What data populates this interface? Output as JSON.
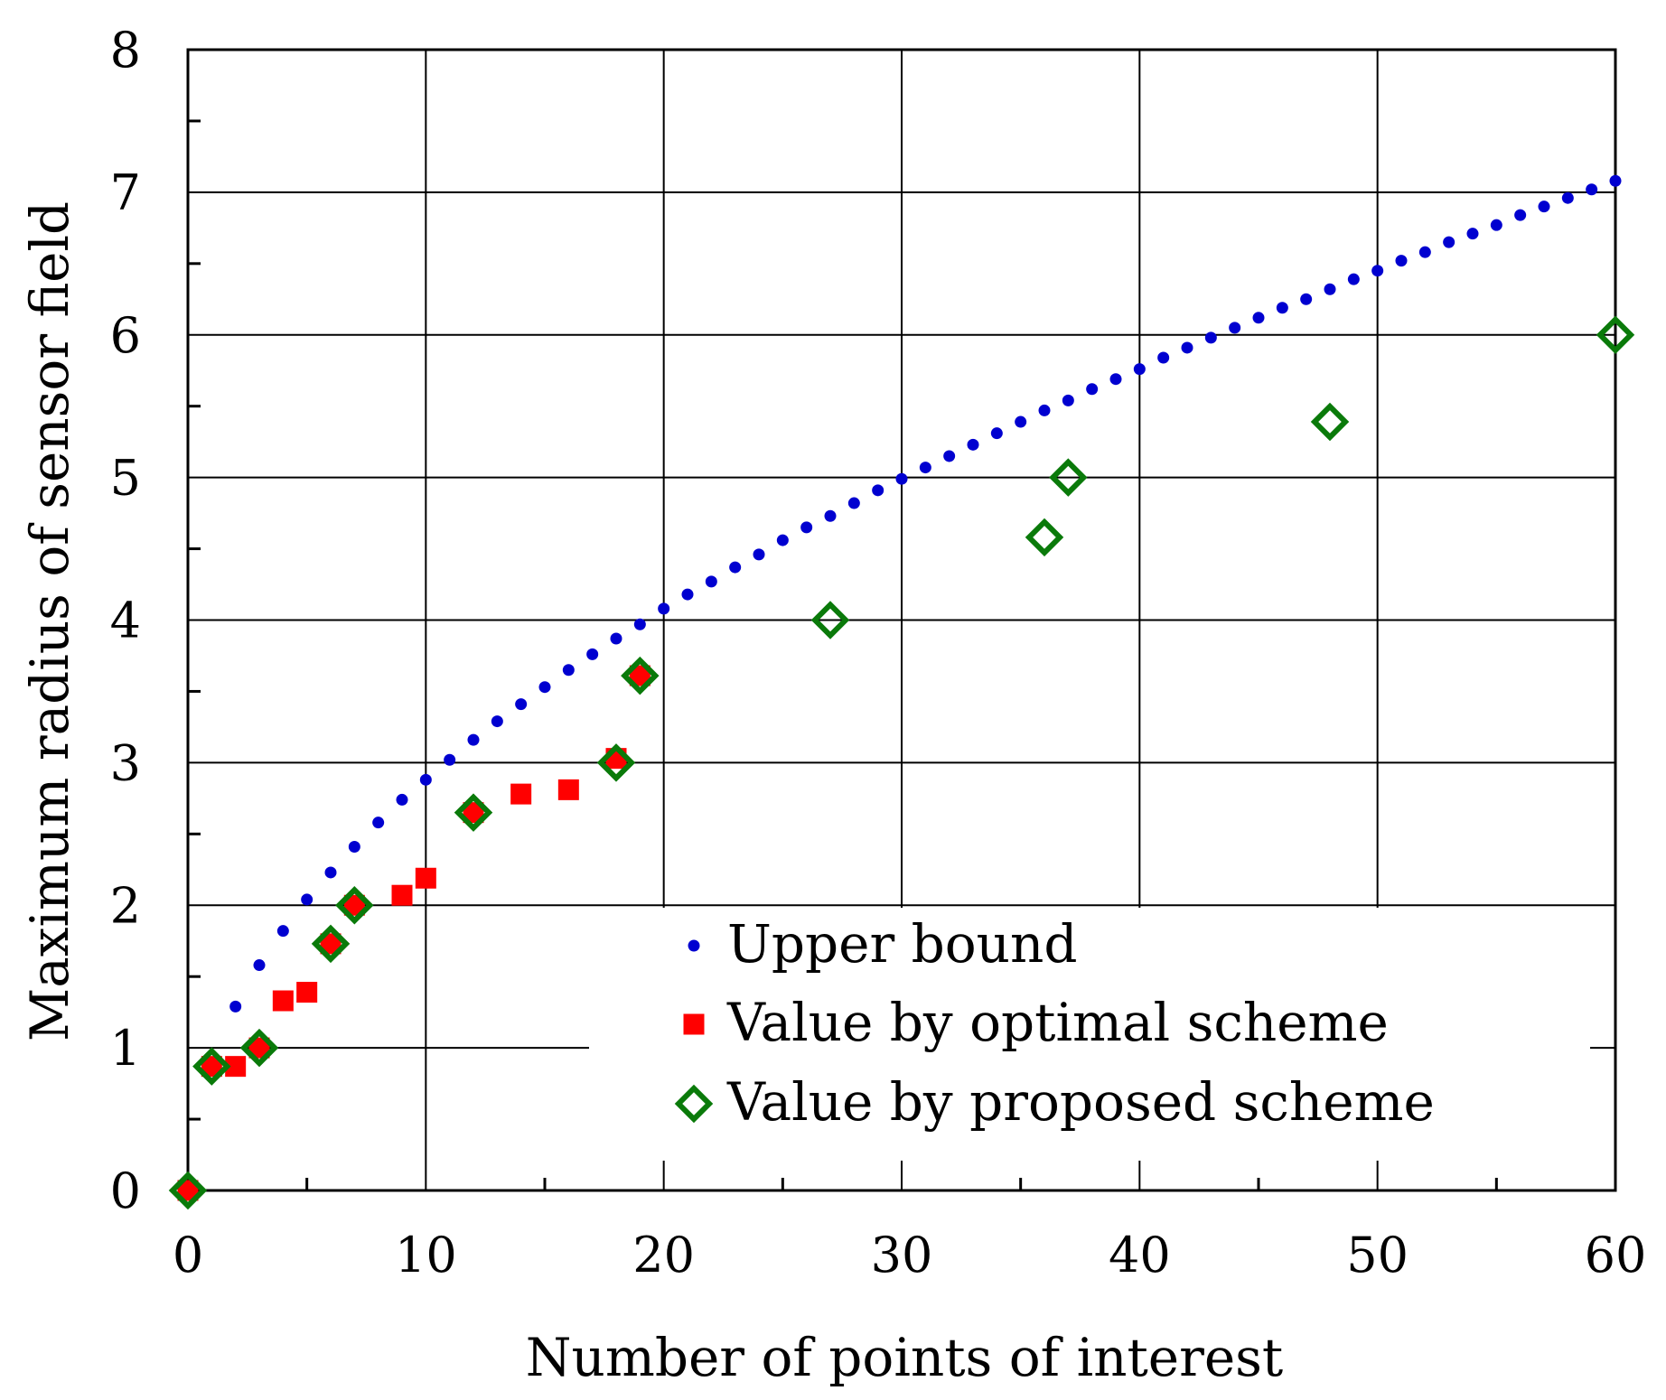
{
  "chart_data": {
    "type": "scatter",
    "title": "",
    "xlabel": "Number of points of interest",
    "ylabel": "Maximum radius of sensor field",
    "xlim": [
      0,
      60
    ],
    "ylim": [
      0,
      8
    ],
    "x_ticks": [
      0,
      10,
      20,
      30,
      40,
      50,
      60
    ],
    "x_tick_labels": [
      "0",
      "10",
      "20",
      "30",
      "40",
      "50",
      "60"
    ],
    "y_ticks": [
      0,
      1,
      2,
      3,
      4,
      5,
      6,
      7,
      8
    ],
    "y_tick_labels": [
      "0",
      "1",
      "2",
      "3",
      "4",
      "5",
      "6",
      "7",
      "8"
    ],
    "grid": true,
    "legend_position": "bottom-right",
    "series": [
      {
        "name": "Upper bound",
        "marker": "dot",
        "color": "#0000d0",
        "x": [
          2,
          3,
          4,
          5,
          6,
          7,
          8,
          9,
          10,
          11,
          12,
          13,
          14,
          15,
          16,
          17,
          18,
          19,
          20,
          21,
          22,
          23,
          24,
          25,
          26,
          27,
          28,
          29,
          30,
          31,
          32,
          33,
          34,
          35,
          36,
          37,
          38,
          39,
          40,
          41,
          42,
          43,
          44,
          45,
          46,
          47,
          48,
          49,
          50,
          51,
          52,
          53,
          54,
          55,
          56,
          57,
          58,
          59,
          60
        ],
        "y": [
          1.29,
          1.58,
          1.82,
          2.04,
          2.23,
          2.41,
          2.58,
          2.74,
          2.88,
          3.02,
          3.16,
          3.29,
          3.41,
          3.53,
          3.65,
          3.76,
          3.87,
          3.97,
          4.08,
          4.18,
          4.27,
          4.37,
          4.46,
          4.56,
          4.65,
          4.73,
          4.82,
          4.91,
          4.99,
          5.07,
          5.15,
          5.23,
          5.31,
          5.39,
          5.47,
          5.54,
          5.62,
          5.69,
          5.76,
          5.84,
          5.91,
          5.98,
          6.05,
          6.12,
          6.19,
          6.25,
          6.32,
          6.39,
          6.45,
          6.52,
          6.58,
          6.65,
          6.71,
          6.77,
          6.84,
          6.9,
          6.96,
          7.02,
          7.08
        ]
      },
      {
        "name": "Value by optimal scheme",
        "marker": "square",
        "color": "#ff0000",
        "x": [
          0,
          1,
          2,
          3,
          4,
          5,
          6,
          7,
          9,
          10,
          12,
          14,
          16,
          18,
          19
        ],
        "y": [
          0,
          0.87,
          0.87,
          1.0,
          1.33,
          1.39,
          1.73,
          2.0,
          2.07,
          2.19,
          2.65,
          2.78,
          2.81,
          3.03,
          3.61
        ]
      },
      {
        "name": "Value by proposed scheme",
        "marker": "diamond-open",
        "color": "#0a7a0a",
        "x": [
          0,
          1,
          3,
          6,
          7,
          12,
          18,
          19,
          27,
          36,
          37,
          48,
          60
        ],
        "y": [
          0,
          0.87,
          1.0,
          1.73,
          2.0,
          2.65,
          3.0,
          3.61,
          4.0,
          4.58,
          5.0,
          5.39,
          6.0
        ]
      }
    ]
  }
}
